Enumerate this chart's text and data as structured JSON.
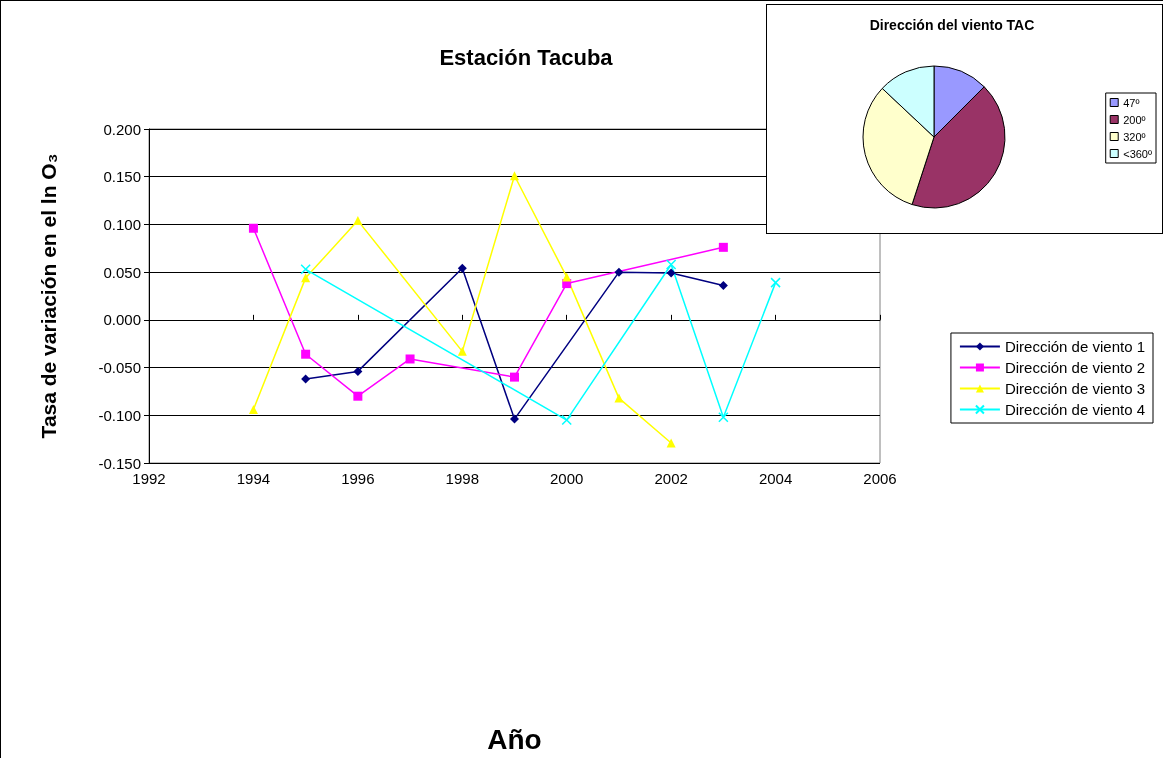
{
  "chart_data": [
    {
      "type": "line",
      "title": "Estación Tacuba",
      "xlabel": "Año",
      "ylabel": "Tasa de variación en el ln O₃",
      "xlim": [
        1992,
        2006
      ],
      "xticks": [
        1992,
        1994,
        1996,
        1998,
        2000,
        2002,
        2004,
        2006
      ],
      "ylim": [
        -0.15,
        0.2
      ],
      "yticks": [
        {
          "value": -0.15,
          "label": "-0.150"
        },
        {
          "value": -0.1,
          "label": "-0.100"
        },
        {
          "value": -0.05,
          "label": "-0.050"
        },
        {
          "value": 0,
          "label": "0.000"
        },
        {
          "value": 0.05,
          "label": "0.050"
        },
        {
          "value": 0.1,
          "label": "0.100"
        },
        {
          "value": 0.15,
          "label": "0.150"
        },
        {
          "value": 0.2,
          "label": "0.200"
        }
      ],
      "grid": "y",
      "legend": "right",
      "series": [
        {
          "name": "Dirección de viento 1",
          "color": "#000080",
          "marker": "diamond",
          "x": [
            1995,
            1996,
            1998,
            1999,
            2001,
            2002,
            2003
          ],
          "values": [
            -0.062,
            -0.054,
            0.054,
            -0.104,
            0.05,
            0.049,
            0.036
          ]
        },
        {
          "name": "Dirección de viento 2",
          "color": "#ff00ff",
          "marker": "square",
          "x": [
            1994,
            1995,
            1996,
            1997,
            1999,
            2000,
            2003
          ],
          "values": [
            0.096,
            -0.036,
            -0.08,
            -0.041,
            -0.06,
            0.038,
            0.076
          ]
        },
        {
          "name": "Dirección de viento 3",
          "color": "#ffff00",
          "marker": "triangle",
          "x": [
            1994,
            1995,
            1996,
            1998,
            1999,
            2000,
            2001,
            2002
          ],
          "values": [
            -0.094,
            0.044,
            0.104,
            -0.033,
            0.151,
            0.045,
            -0.082,
            -0.129
          ]
        },
        {
          "name": "Dirección de viento 4",
          "color": "#00ffff",
          "marker": "cross",
          "x": [
            1995,
            2000,
            2002,
            2003,
            2004
          ],
          "values": [
            0.053,
            -0.105,
            0.058,
            -0.102,
            0.039
          ]
        }
      ]
    },
    {
      "type": "pie",
      "title": "Dirección del viento TAC",
      "legend": "right",
      "categories": [
        "47º",
        "200º",
        "320º",
        "<360º"
      ],
      "values": [
        12.5,
        42.5,
        32,
        13
      ],
      "colors": [
        "#9999ff",
        "#993366",
        "#ffffcc",
        "#ccffff"
      ]
    }
  ]
}
